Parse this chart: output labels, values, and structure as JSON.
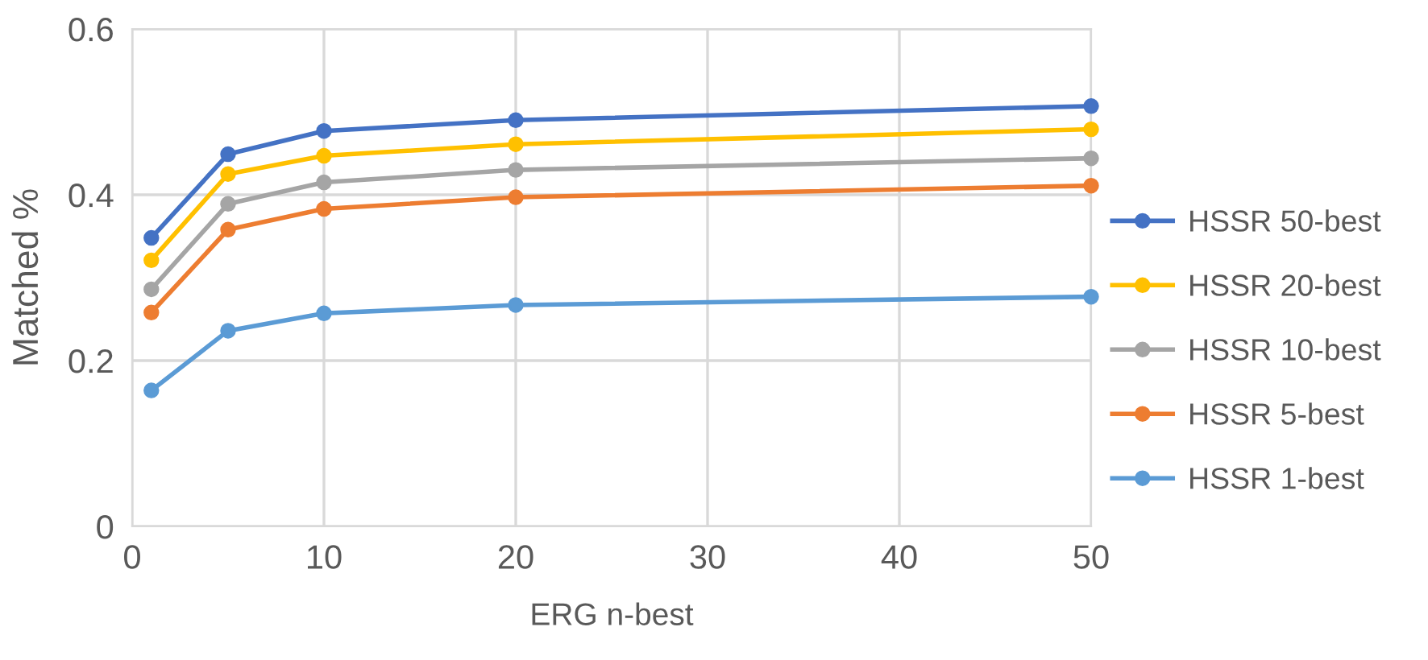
{
  "chart_data": {
    "type": "line",
    "xlabel": "ERG n-best",
    "ylabel": "Matched %",
    "x": [
      1,
      5,
      10,
      20,
      50
    ],
    "series": [
      {
        "name": "HSSR 50-best",
        "color": "#4472c4",
        "values": [
          0.348,
          0.449,
          0.477,
          0.49,
          0.507
        ]
      },
      {
        "name": "HSSR 20-best",
        "color": "#ffc000",
        "values": [
          0.321,
          0.425,
          0.447,
          0.461,
          0.479
        ]
      },
      {
        "name": "HSSR 10-best",
        "color": "#a5a5a5",
        "values": [
          0.286,
          0.389,
          0.415,
          0.43,
          0.444
        ]
      },
      {
        "name": "HSSR 5-best",
        "color": "#ed7d31",
        "values": [
          0.258,
          0.358,
          0.383,
          0.397,
          0.411
        ]
      },
      {
        "name": "HSSR 1-best",
        "color": "#5b9bd5",
        "values": [
          0.164,
          0.236,
          0.257,
          0.267,
          0.277
        ]
      }
    ],
    "xlim": [
      0,
      50
    ],
    "xticks": [
      0,
      10,
      20,
      30,
      40,
      50
    ],
    "ylim": [
      0,
      0.6
    ],
    "yticks": [
      {
        "value": 0,
        "label": "0"
      },
      0.2,
      0.4,
      0.6
    ],
    "grid": true,
    "legend": "right",
    "marker": "circle",
    "line_style": "solid"
  }
}
